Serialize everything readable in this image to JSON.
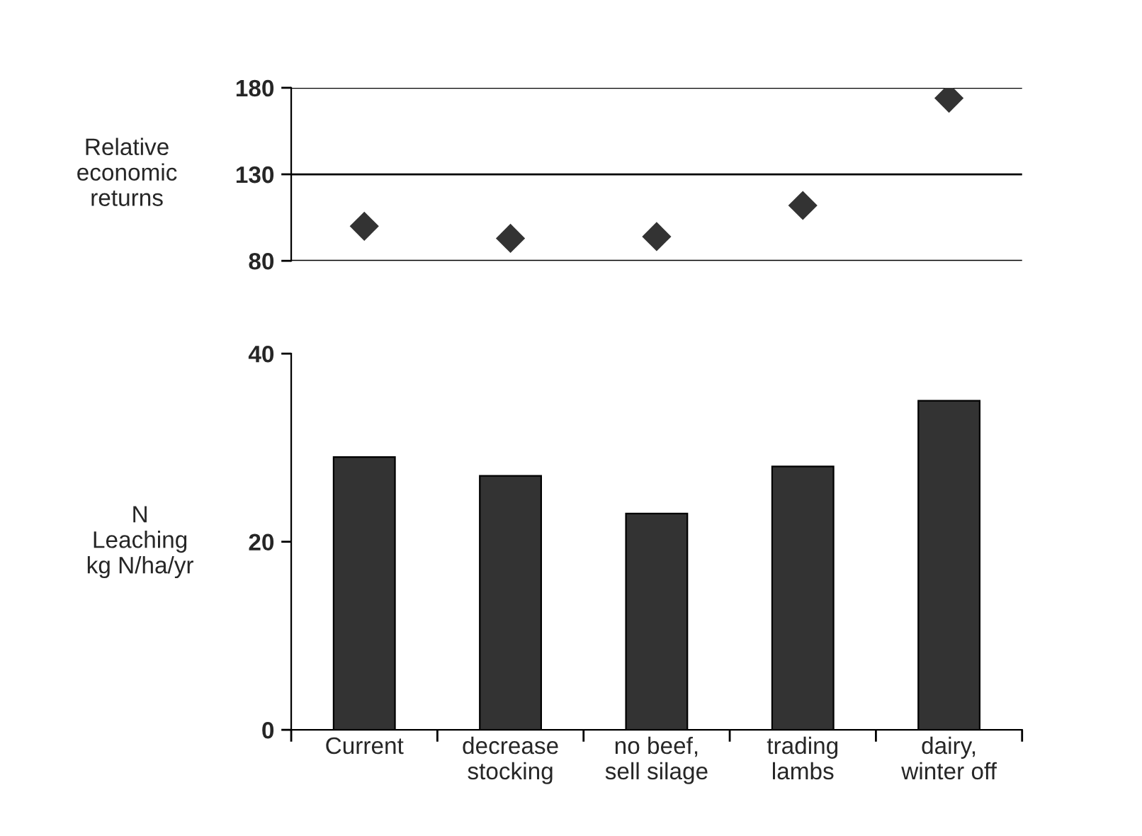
{
  "chart_data": [
    {
      "type": "scatter",
      "ylabel": "Relative\neconomic\nreturns",
      "categories": [
        null,
        null,
        null,
        null,
        null
      ],
      "series": [
        {
          "color": "#333333",
          "values": [
            100,
            93,
            94,
            112,
            174
          ]
        }
      ],
      "ylim": [
        80,
        180
      ],
      "yticks": [
        80,
        130,
        180
      ],
      "grid": "y",
      "marker": "diamond",
      "tick_labels": "y"
    },
    {
      "type": "bar",
      "ylabel": "N\nLeaching\nkg N/ha/yr",
      "categories": [
        "Current",
        "decrease\nstocking",
        "no beef,\nsell silage",
        "trading\nlambs",
        "dairy,\nwinter off"
      ],
      "series": [
        {
          "color": "#333333",
          "values": [
            29,
            27,
            23,
            28,
            35
          ]
        }
      ],
      "ylim": [
        0,
        40
      ],
      "yticks": [
        0,
        20,
        40
      ],
      "grid": false
    }
  ]
}
